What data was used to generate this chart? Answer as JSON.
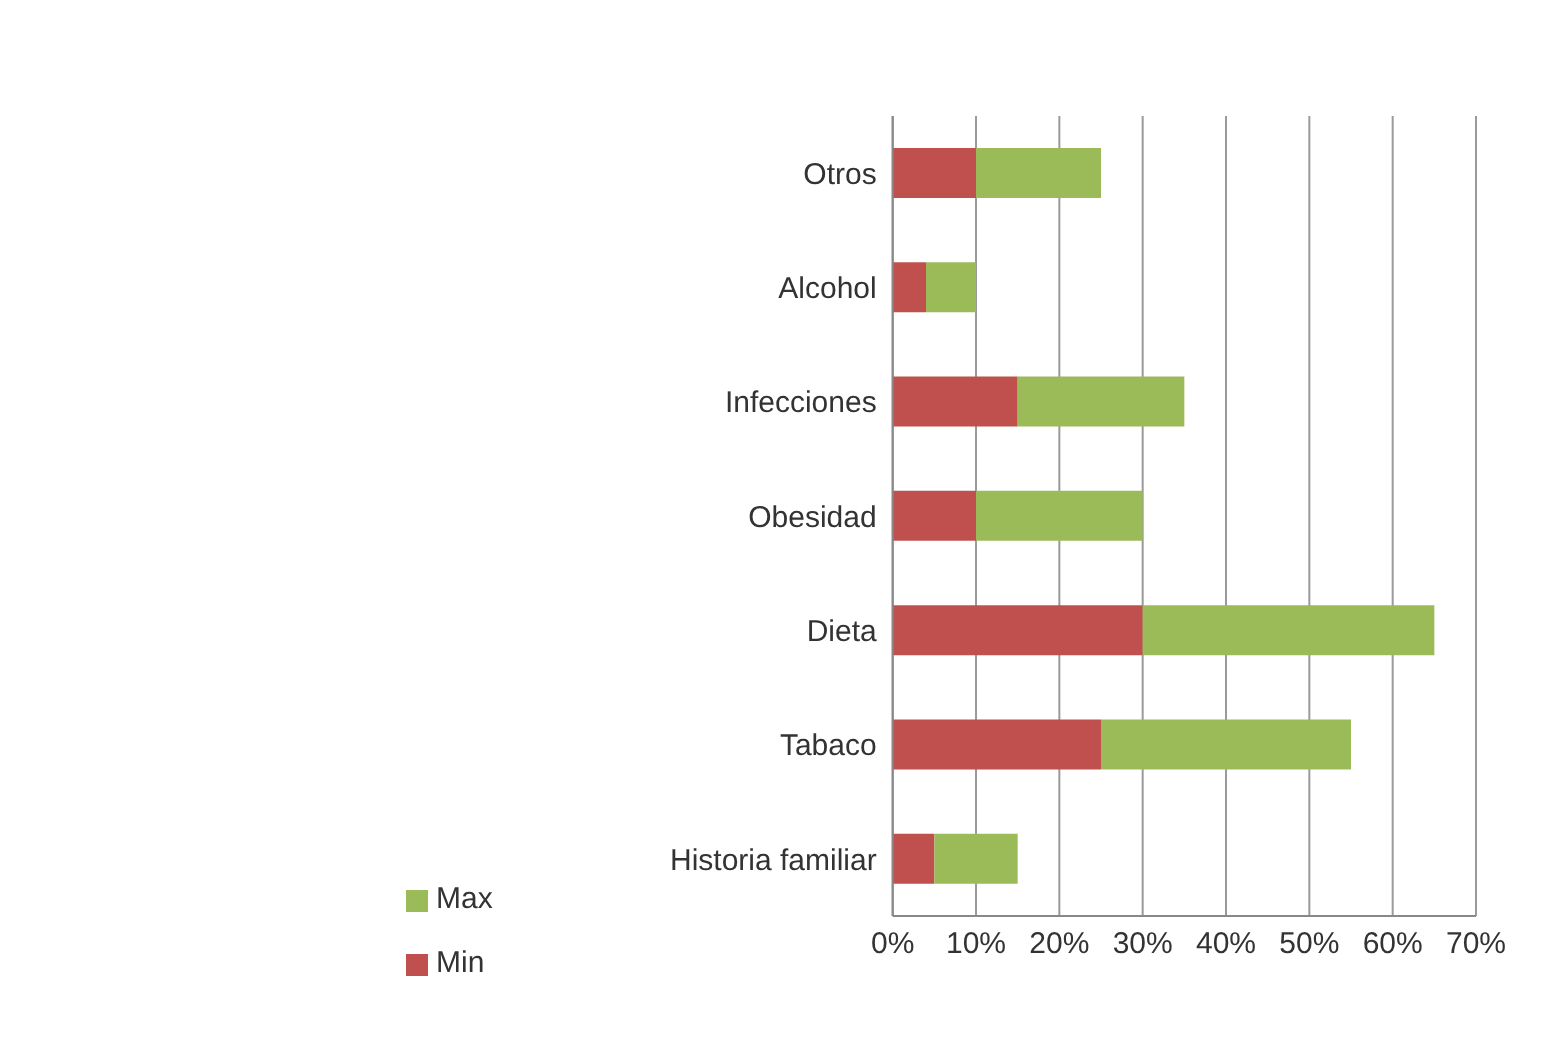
{
  "chart_data": {
    "type": "bar",
    "orientation": "horizontal",
    "stacked": true,
    "categories": [
      "Otros",
      "Alcohol",
      "Infecciones",
      "Obesidad",
      "Dieta",
      "Tabaco",
      "Historia familiar"
    ],
    "series": [
      {
        "name": "Min",
        "color": "#c0504d",
        "values": [
          10,
          4,
          15,
          10,
          30,
          25,
          5
        ]
      },
      {
        "name": "Max",
        "color": "#9bbb59",
        "values": [
          15,
          6,
          20,
          20,
          35,
          30,
          10
        ]
      }
    ],
    "xlim": [
      0,
      70
    ],
    "xticks": [
      {
        "value": 0,
        "label": "0%"
      },
      {
        "value": 10,
        "label": "10%"
      },
      {
        "value": 20,
        "label": "20%"
      },
      {
        "value": 30,
        "label": "30%"
      },
      {
        "value": 40,
        "label": "40%"
      },
      {
        "value": 50,
        "label": "50%"
      },
      {
        "value": 60,
        "label": "60%"
      },
      {
        "value": 70,
        "label": "70%"
      }
    ],
    "grid": "x",
    "legend": "bottom"
  }
}
